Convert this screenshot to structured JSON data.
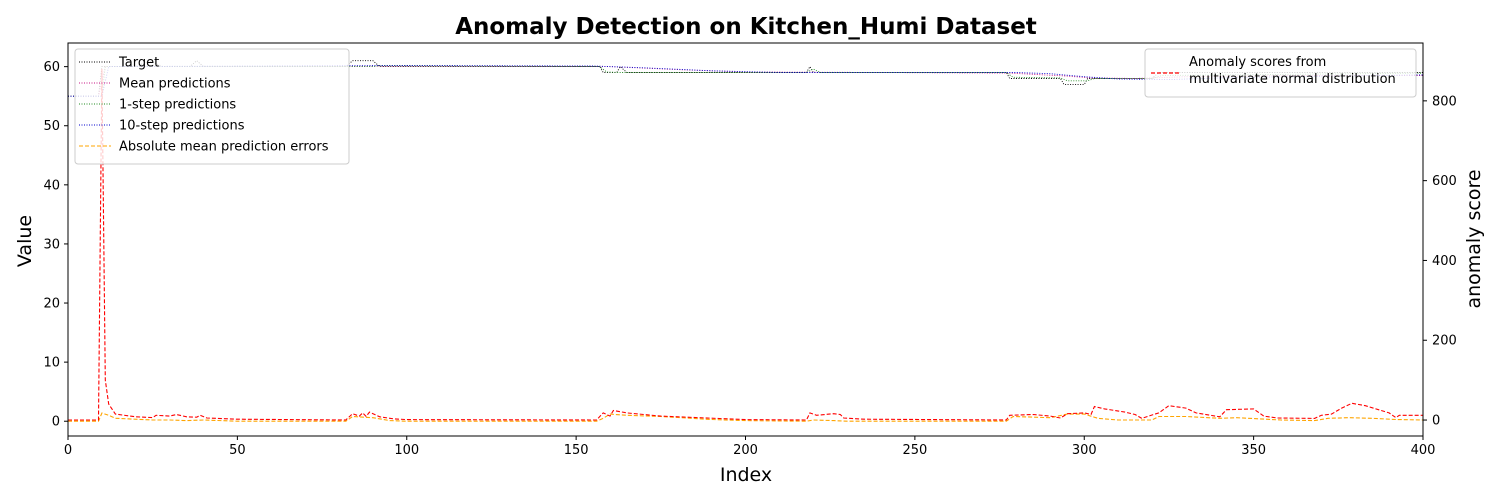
{
  "chart_data": {
    "type": "line",
    "title": "Anomaly Detection on Kitchen_Humi Dataset",
    "xlabel": "Index",
    "ylabel": "Value",
    "y2label": "anomaly score",
    "xlim": [
      0,
      400
    ],
    "ylim": [
      -2.5,
      64
    ],
    "y2lim": [
      -40,
      945
    ],
    "xticks": [
      0,
      50,
      100,
      150,
      200,
      250,
      300,
      350,
      400
    ],
    "yticks": [
      0,
      10,
      20,
      30,
      40,
      50,
      60
    ],
    "y2ticks": [
      0,
      200,
      400,
      600,
      800
    ],
    "grid": false,
    "legend_left": {
      "placement": "top-left"
    },
    "legend_right": {
      "placement": "top-right"
    },
    "series": [
      {
        "name": "Target",
        "axis": "left",
        "color": "#000000",
        "style": "dotted",
        "points": [
          [
            0,
            55
          ],
          [
            9,
            55
          ],
          [
            10,
            60
          ],
          [
            20,
            60
          ],
          [
            24,
            61
          ],
          [
            28,
            60
          ],
          [
            36,
            60
          ],
          [
            38,
            61
          ],
          [
            40,
            60
          ],
          [
            82,
            60
          ],
          [
            84,
            61
          ],
          [
            90,
            61
          ],
          [
            92,
            60
          ],
          [
            157,
            60
          ],
          [
            158,
            59
          ],
          [
            162,
            59
          ],
          [
            163,
            60
          ],
          [
            165,
            59
          ],
          [
            218,
            59
          ],
          [
            219,
            60
          ],
          [
            220,
            59
          ],
          [
            277,
            59
          ],
          [
            278,
            58
          ],
          [
            293,
            58
          ],
          [
            294,
            57
          ],
          [
            300,
            57
          ],
          [
            301,
            58
          ],
          [
            320,
            58
          ],
          [
            322,
            59
          ],
          [
            400,
            59
          ]
        ]
      },
      {
        "name": "Mean predictions",
        "axis": "left",
        "color": "#c71585",
        "style": "dotted",
        "points": [
          [
            0,
            55
          ],
          [
            9,
            55
          ],
          [
            11,
            60
          ],
          [
            40,
            60
          ],
          [
            100,
            60.1
          ],
          [
            160,
            60
          ],
          [
            180,
            59.5
          ],
          [
            200,
            59.1
          ],
          [
            240,
            59
          ],
          [
            278,
            58.9
          ],
          [
            295,
            58.4
          ],
          [
            302,
            58.1
          ],
          [
            315,
            58
          ],
          [
            330,
            58.3
          ],
          [
            360,
            58.5
          ],
          [
            400,
            58.5
          ]
        ]
      },
      {
        "name": "1-step predictions",
        "axis": "left",
        "color": "#228b22",
        "style": "dotted",
        "points": [
          [
            0,
            55
          ],
          [
            10,
            55
          ],
          [
            11,
            60
          ],
          [
            90,
            60
          ],
          [
            92,
            60.2
          ],
          [
            157,
            60
          ],
          [
            159,
            59.1
          ],
          [
            163,
            59
          ],
          [
            218,
            59
          ],
          [
            220,
            59.6
          ],
          [
            222,
            59
          ],
          [
            277,
            59
          ],
          [
            279,
            58.2
          ],
          [
            293,
            58.1
          ],
          [
            295,
            57.6
          ],
          [
            301,
            57.6
          ],
          [
            303,
            58
          ],
          [
            320,
            58
          ],
          [
            323,
            58.5
          ],
          [
            400,
            58.9
          ]
        ]
      },
      {
        "name": "10-step predictions",
        "axis": "left",
        "color": "#0000cd",
        "style": "dotted",
        "points": [
          [
            0,
            55
          ],
          [
            10,
            55
          ],
          [
            12,
            60
          ],
          [
            100,
            60.2
          ],
          [
            155,
            60.1
          ],
          [
            170,
            59.8
          ],
          [
            190,
            59.3
          ],
          [
            210,
            59
          ],
          [
            280,
            59
          ],
          [
            290,
            58.8
          ],
          [
            300,
            58.3
          ],
          [
            310,
            57.9
          ],
          [
            325,
            57.8
          ],
          [
            340,
            58.1
          ],
          [
            360,
            58.3
          ],
          [
            400,
            58.6
          ]
        ]
      },
      {
        "name": "Absolute mean prediction errors",
        "axis": "left",
        "color": "#ffa500",
        "style": "dashed",
        "points": [
          [
            0,
            0
          ],
          [
            9,
            0
          ],
          [
            10,
            1.4
          ],
          [
            12,
            1
          ],
          [
            14,
            0.5
          ],
          [
            25,
            0.2
          ],
          [
            30,
            0.2
          ],
          [
            35,
            0.1
          ],
          [
            40,
            0.2
          ],
          [
            50,
            0
          ],
          [
            82,
            0
          ],
          [
            84,
            0.8
          ],
          [
            90,
            0.6
          ],
          [
            95,
            0.1
          ],
          [
            100,
            0
          ],
          [
            156,
            0
          ],
          [
            158,
            0.5
          ],
          [
            160,
            1.2
          ],
          [
            165,
            1
          ],
          [
            175,
            0.8
          ],
          [
            190,
            0.3
          ],
          [
            200,
            0.1
          ],
          [
            218,
            0
          ],
          [
            220,
            0.2
          ],
          [
            226,
            0.1
          ],
          [
            230,
            0
          ],
          [
            277,
            0
          ],
          [
            279,
            0.8
          ],
          [
            290,
            0.6
          ],
          [
            295,
            1.2
          ],
          [
            300,
            1.2
          ],
          [
            304,
            0.5
          ],
          [
            310,
            0.2
          ],
          [
            320,
            0.2
          ],
          [
            322,
            0.8
          ],
          [
            330,
            0.8
          ],
          [
            340,
            0.5
          ],
          [
            345,
            0.6
          ],
          [
            352,
            0.4
          ],
          [
            358,
            0.2
          ],
          [
            368,
            0.1
          ],
          [
            372,
            0.5
          ],
          [
            378,
            0.6
          ],
          [
            385,
            0.5
          ],
          [
            392,
            0.3
          ],
          [
            400,
            0.2
          ]
        ]
      },
      {
        "name": "Anomaly scores from multivariate normal distribution",
        "legend_lines": [
          "Anomaly scores from",
          "multivariate normal distribution"
        ],
        "axis": "right",
        "color": "#ff0000",
        "style": "dashed",
        "points": [
          [
            0,
            0
          ],
          [
            9,
            0
          ],
          [
            10,
            880
          ],
          [
            11,
            100
          ],
          [
            12,
            40
          ],
          [
            14,
            15
          ],
          [
            20,
            8
          ],
          [
            25,
            6
          ],
          [
            26,
            12
          ],
          [
            30,
            10
          ],
          [
            32,
            14
          ],
          [
            35,
            8
          ],
          [
            38,
            7
          ],
          [
            39,
            12
          ],
          [
            41,
            5
          ],
          [
            50,
            2
          ],
          [
            82,
            0
          ],
          [
            84,
            16
          ],
          [
            86,
            10
          ],
          [
            87,
            18
          ],
          [
            88,
            9
          ],
          [
            89,
            20
          ],
          [
            92,
            8
          ],
          [
            96,
            3
          ],
          [
            100,
            1
          ],
          [
            156,
            0
          ],
          [
            158,
            18
          ],
          [
            160,
            10
          ],
          [
            161,
            24
          ],
          [
            165,
            18
          ],
          [
            175,
            10
          ],
          [
            200,
            1
          ],
          [
            218,
            0
          ],
          [
            219,
            18
          ],
          [
            221,
            12
          ],
          [
            226,
            16
          ],
          [
            228,
            14
          ],
          [
            229,
            5
          ],
          [
            235,
            2
          ],
          [
            277,
            0
          ],
          [
            278,
            12
          ],
          [
            285,
            14
          ],
          [
            290,
            10
          ],
          [
            293,
            5
          ],
          [
            295,
            16
          ],
          [
            300,
            18
          ],
          [
            302,
            14
          ],
          [
            303,
            34
          ],
          [
            306,
            28
          ],
          [
            312,
            20
          ],
          [
            315,
            14
          ],
          [
            317,
            4
          ],
          [
            319,
            10
          ],
          [
            322,
            18
          ],
          [
            325,
            36
          ],
          [
            330,
            30
          ],
          [
            333,
            18
          ],
          [
            340,
            8
          ],
          [
            342,
            26
          ],
          [
            350,
            28
          ],
          [
            353,
            10
          ],
          [
            357,
            5
          ],
          [
            368,
            4
          ],
          [
            370,
            12
          ],
          [
            373,
            15
          ],
          [
            376,
            30
          ],
          [
            379,
            42
          ],
          [
            383,
            36
          ],
          [
            390,
            18
          ],
          [
            392,
            6
          ],
          [
            393,
            12
          ],
          [
            400,
            12
          ]
        ]
      }
    ]
  }
}
